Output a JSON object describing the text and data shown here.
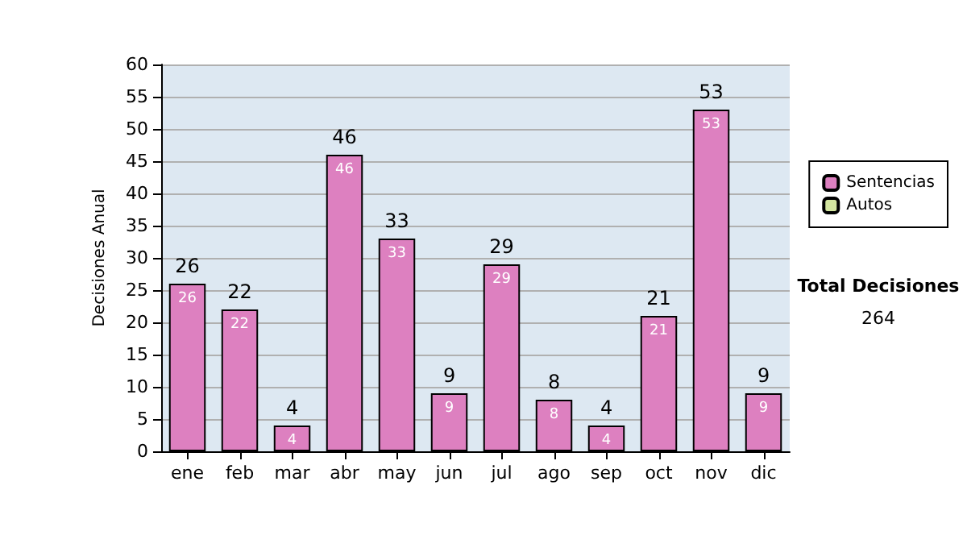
{
  "chart_data": {
    "type": "bar",
    "ylabel": "Decisiones Anual",
    "categories": [
      "ene",
      "feb",
      "mar",
      "abr",
      "may",
      "jun",
      "jul",
      "ago",
      "sep",
      "oct",
      "nov",
      "dic"
    ],
    "series": [
      {
        "name": "Sentencias",
        "color": "#dd80c0",
        "values": [
          26,
          22,
          4,
          46,
          33,
          9,
          29,
          8,
          4,
          21,
          53,
          9
        ],
        "value_labels": [
          "26",
          "22",
          "4",
          "46",
          "33",
          "9",
          "29",
          "8",
          "4",
          "21",
          "53",
          "9"
        ]
      },
      {
        "name": "Autos",
        "color": "#d4e6a0",
        "values": [
          0,
          0,
          0,
          0,
          0,
          0,
          0,
          0,
          0,
          0,
          0,
          0
        ]
      }
    ],
    "stacked": true,
    "totals": [
      "26",
      "22",
      "4",
      "46",
      "33",
      "9",
      "29",
      "8",
      "4",
      "21",
      "53",
      "9"
    ],
    "ylim": [
      0,
      60
    ],
    "yticks": [
      0,
      5,
      10,
      15,
      20,
      25,
      30,
      35,
      40,
      45,
      50,
      55,
      60
    ],
    "grid": "y",
    "legend": "right",
    "annotations": [
      "Total Decisiones",
      "264"
    ]
  }
}
